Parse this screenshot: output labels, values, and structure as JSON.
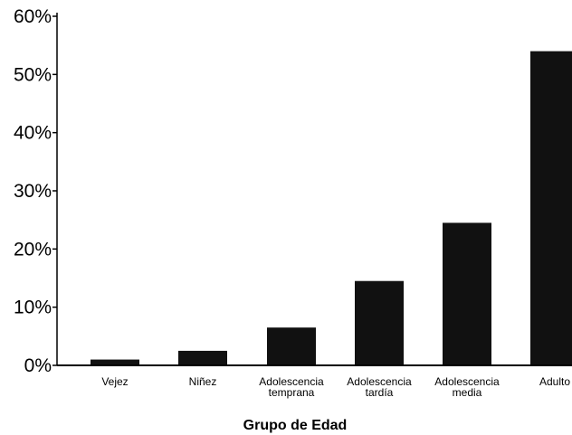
{
  "chart_data": {
    "type": "bar",
    "categories": [
      [
        "Vejez"
      ],
      [
        "Niñez"
      ],
      [
        "Adolescencia",
        "temprana"
      ],
      [
        "Adolescencia",
        "tardía"
      ],
      [
        "Adolescencia",
        "media"
      ],
      [
        "Adulto"
      ]
    ],
    "values": [
      1,
      2.5,
      6.5,
      14.5,
      24.5,
      54
    ],
    "title": "",
    "xlabel": "Grupo de Edad",
    "ylabel": "",
    "ylim": [
      0,
      60
    ],
    "yticks": [
      "0%",
      "10%",
      "20%",
      "30%",
      "40%",
      "50%",
      "60%"
    ],
    "grid": false,
    "legend": "none",
    "colors": {
      "bar": "#111111",
      "axis": "#000000",
      "text": "#000000"
    }
  }
}
